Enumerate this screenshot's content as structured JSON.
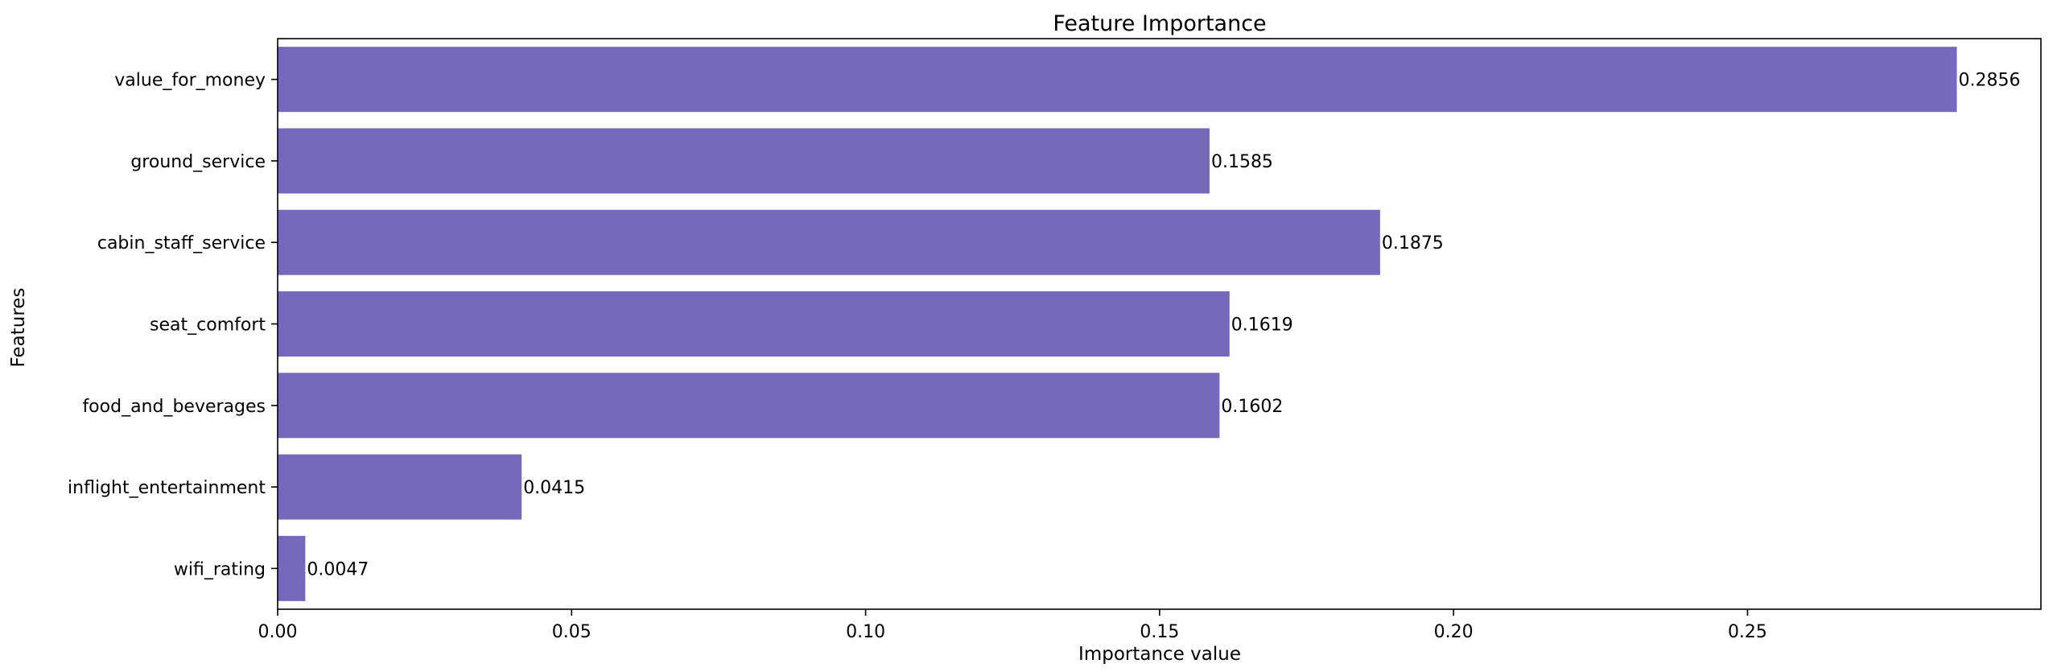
{
  "chart_data": {
    "type": "bar",
    "orientation": "horizontal",
    "title": "Feature Importance",
    "xlabel": "Importance value",
    "ylabel": "Features",
    "categories": [
      "value_for_money",
      "ground_service",
      "cabin_staff_service",
      "seat_comfort",
      "food_and_beverages",
      "inflight_entertainment",
      "wifi_rating"
    ],
    "values": [
      0.2856,
      0.1585,
      0.1875,
      0.1619,
      0.1602,
      0.0415,
      0.0047
    ],
    "data_labels": [
      "0.2856",
      "0.1585",
      "0.1875",
      "0.1619",
      "0.1602",
      "0.0415",
      "0.0047"
    ],
    "xticks": [
      0,
      0.05,
      0.1,
      0.15,
      0.2,
      0.25
    ],
    "xtick_labels": [
      "0.00",
      "0.05",
      "0.10",
      "0.15",
      "0.20",
      "0.25"
    ],
    "xlim": [
      0,
      0.2999
    ],
    "bar_color": "#7469bb",
    "grid": false,
    "legend": "none"
  }
}
